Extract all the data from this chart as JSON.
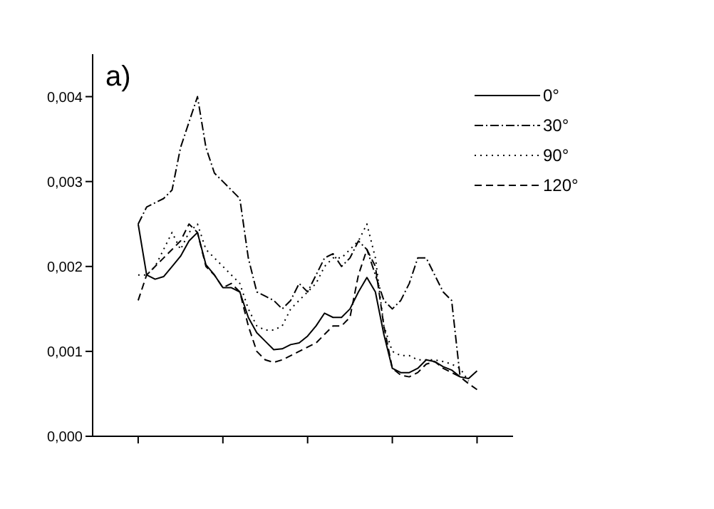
{
  "chart_data": {
    "type": "line",
    "annotations": [
      "a)"
    ],
    "categories": [
      null,
      null,
      null,
      null,
      null,
      null,
      null,
      null,
      null,
      null,
      null,
      null,
      null,
      null,
      null,
      null,
      null,
      null,
      null,
      null,
      null,
      null,
      null,
      null,
      null,
      null,
      null,
      null,
      null,
      null,
      null,
      null,
      null,
      null,
      null,
      null,
      null,
      null,
      null,
      null,
      null
    ],
    "series": [
      {
        "name": "0°",
        "color": "#000000",
        "line_style": "solid",
        "values": [
          0.0025,
          0.0019,
          0.00185,
          0.00188,
          0.002,
          0.00212,
          0.0023,
          0.0024,
          0.00202,
          0.0019,
          0.00175,
          0.00175,
          0.0017,
          0.0014,
          0.00122,
          0.00112,
          0.00102,
          0.00103,
          0.00108,
          0.0011,
          0.00118,
          0.0013,
          0.00145,
          0.0014,
          0.0014,
          0.0015,
          0.0017,
          0.00187,
          0.0017,
          0.0012,
          0.0008,
          0.00075,
          0.00075,
          0.0008,
          0.0009,
          0.00088,
          0.00082,
          0.00078,
          0.0007,
          0.00068,
          0.00077
        ]
      },
      {
        "name": "30°",
        "color": "#000000",
        "line_style": "dashdot",
        "values": [
          0.0025,
          0.0027,
          0.00275,
          0.0028,
          0.0029,
          0.0034,
          0.0037,
          0.004,
          0.0034,
          0.0031,
          0.003,
          0.0029,
          0.0028,
          0.0021,
          0.0017,
          0.00165,
          0.0016,
          0.0015,
          0.0016,
          0.0018,
          0.0017,
          0.0019,
          0.0021,
          0.00215,
          0.002,
          0.0021,
          0.0023,
          0.0022,
          0.0019,
          0.0016,
          0.0015,
          0.0016,
          0.0018,
          0.0021,
          0.0021,
          0.0019,
          0.0017,
          0.0016,
          0.0007,
          null,
          null
        ]
      },
      {
        "name": "90°",
        "color": "#000000",
        "line_style": "dotted",
        "values": [
          0.0019,
          0.0019,
          0.002,
          0.0022,
          0.0024,
          0.0022,
          0.0024,
          0.0025,
          0.0022,
          0.0021,
          0.002,
          0.0019,
          0.0018,
          0.0015,
          0.0013,
          0.00125,
          0.00125,
          0.0013,
          0.0015,
          0.0016,
          0.0017,
          0.0018,
          0.002,
          0.0021,
          0.0021,
          0.0022,
          0.0023,
          0.0025,
          0.0021,
          0.0013,
          0.001,
          0.00095,
          0.00095,
          0.0009,
          0.0009,
          0.0009,
          0.00088,
          0.00085,
          0.0008,
          0.00065,
          null
        ]
      },
      {
        "name": "120°",
        "color": "#000000",
        "line_style": "dashed",
        "values": [
          0.0016,
          0.0019,
          0.002,
          0.0021,
          0.0022,
          0.0023,
          0.0025,
          0.0024,
          0.002,
          0.0019,
          0.00175,
          0.0018,
          0.0017,
          0.0013,
          0.001,
          0.0009,
          0.00087,
          0.0009,
          0.00095,
          0.001,
          0.00105,
          0.0011,
          0.0012,
          0.0013,
          0.0013,
          0.0014,
          0.0019,
          0.0022,
          0.002,
          0.0013,
          0.0008,
          0.00072,
          0.0007,
          0.00075,
          0.00085,
          0.00088,
          0.0008,
          0.00075,
          0.0007,
          0.00062,
          0.00055
        ]
      }
    ],
    "ylim": [
      0,
      0.0045
    ],
    "yticks": [
      {
        "value": 0,
        "label": "0,000"
      },
      {
        "value": 0.001,
        "label": "0,001"
      },
      {
        "value": 0.002,
        "label": "0,002"
      },
      {
        "value": 0.003,
        "label": "0,003"
      },
      {
        "value": 0.004,
        "label": "0,004"
      }
    ],
    "legend": "top right",
    "grid": false,
    "marker": "none"
  }
}
